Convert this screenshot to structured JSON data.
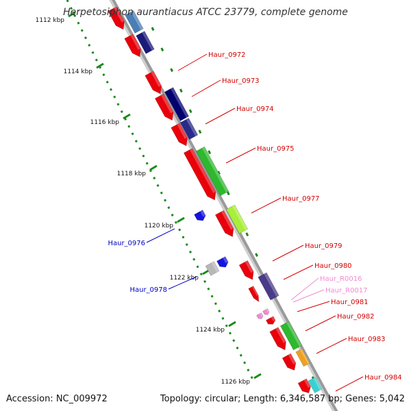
{
  "title": "Herpetosiphon aurantiacus ATCC 23779, complete genome",
  "footer": {
    "accession": "Accession: NC_009972",
    "summary": "Topology: circular; Length: 6,346,587 bp; Genes: 5,042"
  },
  "colors": {
    "backbone": "#9a9a9a",
    "tick": "#1a8a1a",
    "label_red": "#d40000",
    "label_blue": "#0000c0",
    "label_pink": "#f08ad0"
  },
  "ticks": [
    {
      "label": "1112 kbp"
    },
    {
      "label": "1114 kbp"
    },
    {
      "label": "1116 kbp"
    },
    {
      "label": "1118 kbp"
    },
    {
      "label": "1120 kbp"
    },
    {
      "label": "1122 kbp"
    },
    {
      "label": "1124 kbp"
    },
    {
      "label": "1126 kbp"
    }
  ],
  "features": [
    {
      "name": "",
      "strand": "+",
      "color": "#e8000a"
    },
    {
      "name": "",
      "strand": "+",
      "color": "#4a7fb5"
    },
    {
      "name": "Haur_0972",
      "strand": "+",
      "color": "#e8000a"
    },
    {
      "name": "",
      "strand": "+",
      "color": "#1a1a7a"
    },
    {
      "name": "Haur_0973",
      "strand": "+",
      "color": "#e8000a"
    },
    {
      "name": "",
      "strand": "+",
      "color": "#000070"
    },
    {
      "name": "Haur_0974",
      "strand": "+",
      "color": "#e8000a"
    },
    {
      "name": "",
      "strand": "+",
      "color": "#2a2a8a"
    },
    {
      "name": "Haur_0975",
      "strand": "+",
      "color": "#e8000a"
    },
    {
      "name": "",
      "strand": "+",
      "color": "#2eb82e"
    },
    {
      "name": "Haur_0976",
      "strand": "-",
      "color": "#1414e0"
    },
    {
      "name": "Haur_0977",
      "strand": "+",
      "color": "#e8000a"
    },
    {
      "name": "",
      "strand": "+",
      "color": "#a8ee3a"
    },
    {
      "name": "Haur_0978",
      "strand": "-",
      "color": "#1414e0"
    },
    {
      "name": "",
      "strand": "-",
      "color": "#b8b8b8"
    },
    {
      "name": "Haur_0979",
      "strand": "+",
      "color": "#e8000a"
    },
    {
      "name": "Haur_0980",
      "strand": "+",
      "color": "#4a3a8a"
    },
    {
      "name": "",
      "strand": "+",
      "color": "#e8000a"
    },
    {
      "name": "Haur_R0016",
      "strand": "+",
      "color": "#f08ad0"
    },
    {
      "name": "Haur_R0017",
      "strand": "+",
      "color": "#f08ad0"
    },
    {
      "name": "Haur_0981",
      "strand": "+",
      "color": "#e8000a"
    },
    {
      "name": "Haur_0982",
      "strand": "+",
      "color": "#e8000a"
    },
    {
      "name": "",
      "strand": "+",
      "color": "#2eb82e"
    },
    {
      "name": "Haur_0983",
      "strand": "+",
      "color": "#e8000a"
    },
    {
      "name": "",
      "strand": "+",
      "color": "#f0a020"
    },
    {
      "name": "Haur_0984",
      "strand": "+",
      "color": "#e8000a"
    },
    {
      "name": "",
      "strand": "+",
      "color": "#3ad0d0"
    }
  ]
}
